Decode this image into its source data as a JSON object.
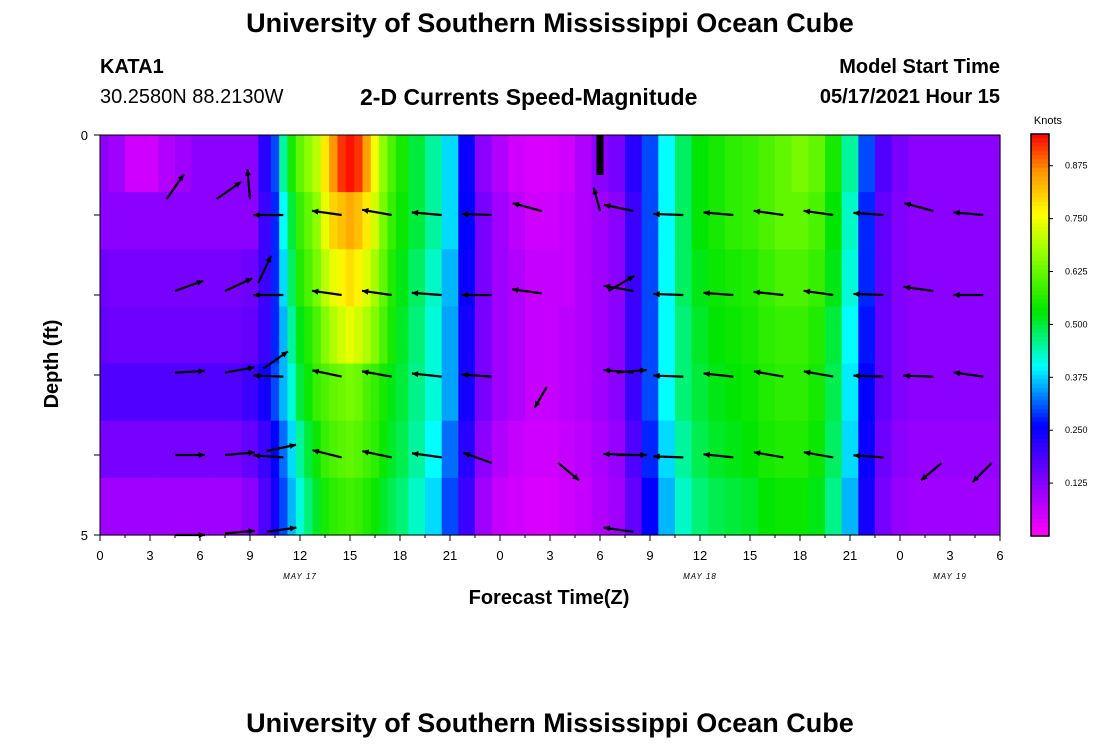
{
  "header": {
    "title": "University of Southern Mississippi Ocean Cube",
    "station": "KATA1",
    "coords": "30.2580N  88.2130W",
    "plot_title": "2-D Currents Speed-Magnitude",
    "model_start_label": "Model Start Time",
    "model_start_value": "05/17/2021 Hour 15"
  },
  "footer": {
    "title": "University of Southern Mississippi Ocean Cube"
  },
  "chart_data": {
    "type": "heatmap",
    "title": "2-D Currents Speed-Magnitude",
    "xlabel": "Forecast Time(Z)",
    "ylabel": "Depth (ft)",
    "x_hours": [
      0,
      54
    ],
    "y_range": [
      0,
      5
    ],
    "y_tick_labels": [
      "0",
      "5"
    ],
    "x_tick_labels": [
      "0",
      "3",
      "6",
      "9",
      "12",
      "15",
      "18",
      "21",
      "0",
      "3",
      "6",
      "9",
      "12",
      "15",
      "18",
      "21",
      "0",
      "3",
      "6"
    ],
    "date_labels": [
      {
        "hour": 12,
        "text": "MAY 17"
      },
      {
        "hour": 36,
        "text": "MAY 18"
      },
      {
        "hour": 51,
        "text": "MAY 19"
      }
    ],
    "colorbar": {
      "unit": "Knots",
      "min": 0.0,
      "max": 0.95,
      "ticks": [
        "0.875",
        "0.750",
        "0.625",
        "0.500",
        "0.375",
        "0.250",
        "0.125"
      ],
      "tick_values": [
        0.875,
        0.75,
        0.625,
        0.5,
        0.375,
        0.25,
        0.125
      ]
    },
    "speed_profile_hours": [
      0,
      1,
      2,
      3,
      4,
      5,
      6,
      7,
      8,
      9,
      10,
      10.5,
      11,
      11.5,
      12,
      12.5,
      13,
      13.5,
      14,
      14.5,
      15,
      15.5,
      16,
      16.5,
      17,
      17.5,
      18,
      19,
      20,
      21,
      22,
      23,
      24,
      25,
      26,
      27,
      28,
      29,
      30,
      31,
      32,
      33,
      34,
      35,
      36,
      37,
      38,
      39,
      40,
      41,
      42,
      43,
      44,
      45,
      46,
      47,
      48,
      49,
      50,
      51,
      52,
      53,
      54
    ],
    "speed_rows": [
      [
        0.12,
        0.1,
        0.05,
        0.05,
        0.08,
        0.1,
        0.12,
        0.12,
        0.12,
        0.12,
        0.22,
        0.3,
        0.45,
        0.55,
        0.62,
        0.66,
        0.7,
        0.78,
        0.86,
        0.92,
        0.94,
        0.92,
        0.85,
        0.75,
        0.66,
        0.6,
        0.55,
        0.5,
        0.45,
        0.38,
        0.25,
        0.12,
        0.08,
        0.05,
        0.04,
        0.04,
        0.05,
        0.08,
        0.12,
        0.14,
        0.22,
        0.3,
        0.4,
        0.48,
        0.53,
        0.55,
        0.57,
        0.58,
        0.6,
        0.62,
        0.64,
        0.62,
        0.55,
        0.45,
        0.3,
        0.18,
        0.14,
        0.12,
        0.12,
        0.12,
        0.12,
        0.12,
        0.12
      ],
      [
        0.12,
        0.12,
        0.12,
        0.12,
        0.12,
        0.12,
        0.12,
        0.12,
        0.12,
        0.12,
        0.2,
        0.28,
        0.4,
        0.5,
        0.58,
        0.62,
        0.66,
        0.74,
        0.8,
        0.82,
        0.84,
        0.82,
        0.78,
        0.72,
        0.64,
        0.58,
        0.54,
        0.5,
        0.45,
        0.38,
        0.26,
        0.14,
        0.1,
        0.07,
        0.05,
        0.05,
        0.06,
        0.08,
        0.1,
        0.12,
        0.2,
        0.3,
        0.4,
        0.48,
        0.53,
        0.55,
        0.57,
        0.58,
        0.6,
        0.62,
        0.62,
        0.6,
        0.53,
        0.43,
        0.28,
        0.16,
        0.13,
        0.12,
        0.12,
        0.12,
        0.12,
        0.12,
        0.12
      ],
      [
        0.15,
        0.14,
        0.14,
        0.14,
        0.14,
        0.14,
        0.14,
        0.14,
        0.14,
        0.15,
        0.2,
        0.28,
        0.38,
        0.48,
        0.56,
        0.6,
        0.64,
        0.7,
        0.74,
        0.77,
        0.79,
        0.77,
        0.73,
        0.68,
        0.62,
        0.56,
        0.52,
        0.48,
        0.43,
        0.36,
        0.25,
        0.14,
        0.1,
        0.08,
        0.06,
        0.06,
        0.06,
        0.08,
        0.1,
        0.12,
        0.2,
        0.3,
        0.4,
        0.48,
        0.52,
        0.54,
        0.55,
        0.56,
        0.58,
        0.6,
        0.6,
        0.58,
        0.52,
        0.42,
        0.28,
        0.16,
        0.13,
        0.12,
        0.12,
        0.12,
        0.12,
        0.12,
        0.12
      ],
      [
        0.16,
        0.15,
        0.15,
        0.15,
        0.15,
        0.15,
        0.15,
        0.15,
        0.15,
        0.16,
        0.2,
        0.28,
        0.36,
        0.45,
        0.52,
        0.56,
        0.6,
        0.65,
        0.69,
        0.72,
        0.74,
        0.72,
        0.69,
        0.65,
        0.6,
        0.55,
        0.51,
        0.47,
        0.42,
        0.35,
        0.24,
        0.14,
        0.1,
        0.08,
        0.06,
        0.06,
        0.07,
        0.08,
        0.1,
        0.12,
        0.2,
        0.3,
        0.4,
        0.47,
        0.51,
        0.53,
        0.54,
        0.55,
        0.57,
        0.58,
        0.58,
        0.56,
        0.5,
        0.4,
        0.27,
        0.16,
        0.13,
        0.12,
        0.12,
        0.12,
        0.12,
        0.12,
        0.12
      ],
      [
        0.18,
        0.18,
        0.18,
        0.18,
        0.18,
        0.18,
        0.18,
        0.18,
        0.18,
        0.2,
        0.24,
        0.3,
        0.36,
        0.42,
        0.5,
        0.54,
        0.58,
        0.6,
        0.62,
        0.63,
        0.64,
        0.63,
        0.6,
        0.58,
        0.55,
        0.52,
        0.5,
        0.46,
        0.42,
        0.35,
        0.24,
        0.14,
        0.1,
        0.08,
        0.06,
        0.06,
        0.07,
        0.08,
        0.1,
        0.12,
        0.2,
        0.3,
        0.4,
        0.47,
        0.5,
        0.52,
        0.53,
        0.54,
        0.56,
        0.57,
        0.57,
        0.55,
        0.49,
        0.39,
        0.26,
        0.16,
        0.13,
        0.12,
        0.12,
        0.12,
        0.12,
        0.12,
        0.12
      ],
      [
        0.14,
        0.14,
        0.14,
        0.14,
        0.14,
        0.14,
        0.14,
        0.14,
        0.14,
        0.16,
        0.2,
        0.26,
        0.32,
        0.38,
        0.45,
        0.5,
        0.54,
        0.58,
        0.6,
        0.61,
        0.62,
        0.61,
        0.59,
        0.57,
        0.54,
        0.51,
        0.49,
        0.45,
        0.4,
        0.32,
        0.22,
        0.12,
        0.08,
        0.06,
        0.05,
        0.05,
        0.06,
        0.07,
        0.09,
        0.11,
        0.18,
        0.28,
        0.38,
        0.45,
        0.49,
        0.51,
        0.52,
        0.53,
        0.55,
        0.56,
        0.56,
        0.54,
        0.48,
        0.38,
        0.25,
        0.15,
        0.12,
        0.11,
        0.11,
        0.11,
        0.11,
        0.11,
        0.11
      ],
      [
        0.1,
        0.1,
        0.1,
        0.1,
        0.1,
        0.1,
        0.1,
        0.1,
        0.1,
        0.12,
        0.18,
        0.24,
        0.3,
        0.36,
        0.42,
        0.47,
        0.51,
        0.55,
        0.57,
        0.58,
        0.59,
        0.58,
        0.56,
        0.54,
        0.51,
        0.49,
        0.47,
        0.43,
        0.38,
        0.3,
        0.2,
        0.1,
        0.06,
        0.05,
        0.04,
        0.04,
        0.05,
        0.06,
        0.08,
        0.1,
        0.16,
        0.26,
        0.36,
        0.43,
        0.47,
        0.49,
        0.5,
        0.51,
        0.53,
        0.54,
        0.54,
        0.52,
        0.46,
        0.36,
        0.24,
        0.14,
        0.11,
        0.1,
        0.1,
        0.1,
        0.1,
        0.1,
        0.1
      ]
    ],
    "vectors": [
      {
        "hour": 4,
        "depth": 0.8,
        "angle_deg": 55,
        "len": 1.0
      },
      {
        "hour": 7,
        "depth": 0.8,
        "angle_deg": 35,
        "len": 1.0
      },
      {
        "hour": 9,
        "depth": 0.8,
        "angle_deg": 95,
        "len": 1.0
      },
      {
        "hour": 11,
        "depth": 1.0,
        "angle_deg": 180,
        "len": 1.0
      },
      {
        "hour": 14.5,
        "depth": 1.0,
        "angle_deg": 172,
        "len": 1.0
      },
      {
        "hour": 17.5,
        "depth": 1.0,
        "angle_deg": 170,
        "len": 1.0
      },
      {
        "hour": 20.5,
        "depth": 1.0,
        "angle_deg": 175,
        "len": 1.0
      },
      {
        "hour": 23.5,
        "depth": 1.0,
        "angle_deg": 178,
        "len": 1.0
      },
      {
        "hour": 26.5,
        "depth": 0.95,
        "angle_deg": 165,
        "len": 1.0
      },
      {
        "hour": 30,
        "depth": 0.95,
        "angle_deg": 105,
        "len": 0.8
      },
      {
        "hour": 32,
        "depth": 0.95,
        "angle_deg": 168,
        "len": 1.0
      },
      {
        "hour": 35,
        "depth": 1.0,
        "angle_deg": 178,
        "len": 1.0
      },
      {
        "hour": 38,
        "depth": 1.0,
        "angle_deg": 175,
        "len": 1.0
      },
      {
        "hour": 41,
        "depth": 1.0,
        "angle_deg": 172,
        "len": 1.0
      },
      {
        "hour": 44,
        "depth": 1.0,
        "angle_deg": 172,
        "len": 1.0
      },
      {
        "hour": 47,
        "depth": 1.0,
        "angle_deg": 176,
        "len": 1.0
      },
      {
        "hour": 50,
        "depth": 0.95,
        "angle_deg": 165,
        "len": 1.0
      },
      {
        "hour": 53,
        "depth": 1.0,
        "angle_deg": 175,
        "len": 1.0
      },
      {
        "hour": 4.5,
        "depth": 1.95,
        "angle_deg": 20,
        "len": 1.0
      },
      {
        "hour": 7.5,
        "depth": 1.95,
        "angle_deg": 25,
        "len": 1.0
      },
      {
        "hour": 9.5,
        "depth": 1.85,
        "angle_deg": 65,
        "len": 1.0
      },
      {
        "hour": 11,
        "depth": 2.0,
        "angle_deg": 180,
        "len": 1.0
      },
      {
        "hour": 14.5,
        "depth": 2.0,
        "angle_deg": 172,
        "len": 1.0
      },
      {
        "hour": 17.5,
        "depth": 2.0,
        "angle_deg": 172,
        "len": 1.0
      },
      {
        "hour": 20.5,
        "depth": 2.0,
        "angle_deg": 176,
        "len": 1.0
      },
      {
        "hour": 23.5,
        "depth": 2.0,
        "angle_deg": 180,
        "len": 1.0
      },
      {
        "hour": 26.5,
        "depth": 1.98,
        "angle_deg": 172,
        "len": 1.0
      },
      {
        "hour": 30.5,
        "depth": 1.95,
        "angle_deg": 30,
        "len": 1.0
      },
      {
        "hour": 32,
        "depth": 1.95,
        "angle_deg": 170,
        "len": 1.0
      },
      {
        "hour": 35,
        "depth": 2.0,
        "angle_deg": 178,
        "len": 1.0
      },
      {
        "hour": 38,
        "depth": 2.0,
        "angle_deg": 176,
        "len": 1.0
      },
      {
        "hour": 41,
        "depth": 2.0,
        "angle_deg": 174,
        "len": 1.0
      },
      {
        "hour": 44,
        "depth": 2.0,
        "angle_deg": 172,
        "len": 1.0
      },
      {
        "hour": 47,
        "depth": 2.0,
        "angle_deg": 178,
        "len": 1.0
      },
      {
        "hour": 50,
        "depth": 1.95,
        "angle_deg": 172,
        "len": 1.0
      },
      {
        "hour": 53,
        "depth": 2.0,
        "angle_deg": 180,
        "len": 1.0
      },
      {
        "hour": 4.5,
        "depth": 2.97,
        "angle_deg": 3,
        "len": 1.0
      },
      {
        "hour": 7.5,
        "depth": 2.97,
        "angle_deg": 10,
        "len": 1.0
      },
      {
        "hour": 9.8,
        "depth": 2.92,
        "angle_deg": 35,
        "len": 1.0
      },
      {
        "hour": 11,
        "depth": 3.02,
        "angle_deg": 178,
        "len": 1.0
      },
      {
        "hour": 14.5,
        "depth": 3.02,
        "angle_deg": 168,
        "len": 1.0
      },
      {
        "hour": 17.5,
        "depth": 3.02,
        "angle_deg": 170,
        "len": 1.0
      },
      {
        "hour": 20.5,
        "depth": 3.02,
        "angle_deg": 174,
        "len": 1.0
      },
      {
        "hour": 23.5,
        "depth": 3.02,
        "angle_deg": 176,
        "len": 1.0
      },
      {
        "hour": 26.8,
        "depth": 3.15,
        "angle_deg": 240,
        "len": 0.8
      },
      {
        "hour": 31,
        "depth": 2.97,
        "angle_deg": 5,
        "len": 1.0
      },
      {
        "hour": 32,
        "depth": 2.97,
        "angle_deg": 175,
        "len": 1.0
      },
      {
        "hour": 35,
        "depth": 3.02,
        "angle_deg": 178,
        "len": 1.0
      },
      {
        "hour": 38,
        "depth": 3.02,
        "angle_deg": 174,
        "len": 1.0
      },
      {
        "hour": 41,
        "depth": 3.02,
        "angle_deg": 170,
        "len": 1.0
      },
      {
        "hour": 44,
        "depth": 3.02,
        "angle_deg": 170,
        "len": 1.0
      },
      {
        "hour": 47,
        "depth": 3.02,
        "angle_deg": 178,
        "len": 1.0
      },
      {
        "hour": 50,
        "depth": 3.02,
        "angle_deg": 178,
        "len": 1.0
      },
      {
        "hour": 53,
        "depth": 3.02,
        "angle_deg": 172,
        "len": 1.0
      },
      {
        "hour": 4.5,
        "depth": 4.0,
        "angle_deg": 0,
        "len": 1.0
      },
      {
        "hour": 7.5,
        "depth": 4.0,
        "angle_deg": 5,
        "len": 1.0
      },
      {
        "hour": 10,
        "depth": 3.95,
        "angle_deg": 12,
        "len": 1.0
      },
      {
        "hour": 11,
        "depth": 4.03,
        "angle_deg": 176,
        "len": 1.0
      },
      {
        "hour": 14.5,
        "depth": 4.03,
        "angle_deg": 166,
        "len": 1.0
      },
      {
        "hour": 17.5,
        "depth": 4.03,
        "angle_deg": 168,
        "len": 1.0
      },
      {
        "hour": 20.5,
        "depth": 4.03,
        "angle_deg": 172,
        "len": 1.0
      },
      {
        "hour": 23.5,
        "depth": 4.1,
        "angle_deg": 160,
        "len": 1.0
      },
      {
        "hour": 27.5,
        "depth": 4.1,
        "angle_deg": 320,
        "len": 0.9
      },
      {
        "hour": 31,
        "depth": 4.0,
        "angle_deg": 0,
        "len": 1.0
      },
      {
        "hour": 32,
        "depth": 4.0,
        "angle_deg": 178,
        "len": 1.0
      },
      {
        "hour": 35,
        "depth": 4.03,
        "angle_deg": 178,
        "len": 1.0
      },
      {
        "hour": 38,
        "depth": 4.03,
        "angle_deg": 174,
        "len": 1.0
      },
      {
        "hour": 41,
        "depth": 4.03,
        "angle_deg": 170,
        "len": 1.0
      },
      {
        "hour": 44,
        "depth": 4.03,
        "angle_deg": 170,
        "len": 1.0
      },
      {
        "hour": 47,
        "depth": 4.03,
        "angle_deg": 176,
        "len": 1.0
      },
      {
        "hour": 50.5,
        "depth": 4.1,
        "angle_deg": 220,
        "len": 0.9
      },
      {
        "hour": 53.5,
        "depth": 4.1,
        "angle_deg": 225,
        "len": 0.9
      },
      {
        "hour": 4.5,
        "depth": 5.0,
        "angle_deg": 0,
        "len": 1.0
      },
      {
        "hour": 7.5,
        "depth": 4.98,
        "angle_deg": 5,
        "len": 1.0
      },
      {
        "hour": 10,
        "depth": 4.96,
        "angle_deg": 8,
        "len": 1.0
      },
      {
        "hour": 32,
        "depth": 4.96,
        "angle_deg": 172,
        "len": 1.0
      }
    ],
    "marker": {
      "hour": 30,
      "depth_from": 0,
      "depth_to": 0.5
    }
  }
}
